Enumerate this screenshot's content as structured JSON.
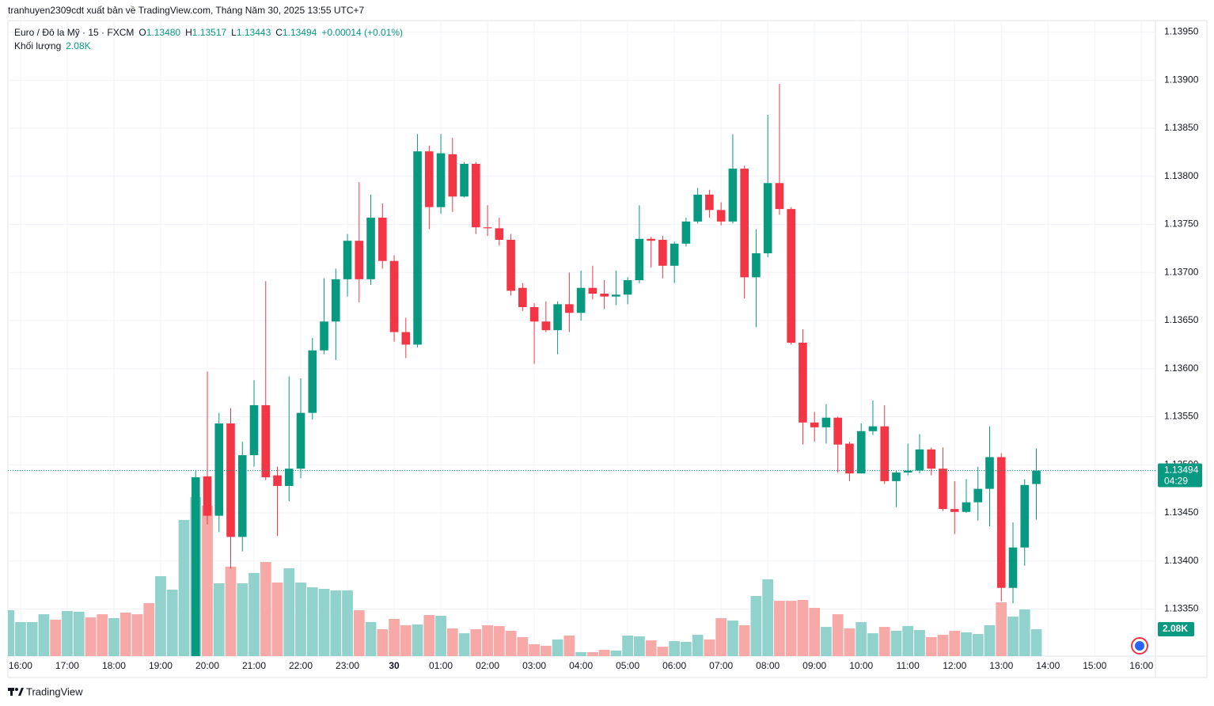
{
  "header": {
    "publisher": "tranhuyen2309cdt xuất bản về TradingView.com, Tháng Năm 30, 2025 13:55 UTC+7",
    "symbol": "Euro / Đô la Mỹ · 15 · FXCM",
    "o_label": "O",
    "o": "1.13480",
    "h_label": "H",
    "h": "1.13517",
    "l_label": "L",
    "l": "1.13443",
    "c_label": "C",
    "c": "1.13494",
    "change": "+0.00014 (+0.01%)",
    "volume_label": "Khối lượng",
    "volume": "2.08K"
  },
  "footer": "TradingView",
  "chart_data": {
    "type": "candlestick",
    "up_color": "#089981",
    "down_color": "#f23645",
    "xlim": [
      -0.08,
      98.2
    ],
    "xticks": [
      {
        "value": 1,
        "label": "16:00"
      },
      {
        "value": 5,
        "label": "17:00"
      },
      {
        "value": 9,
        "label": "18:00"
      },
      {
        "value": 13,
        "label": "19:00"
      },
      {
        "value": 17,
        "label": "20:00"
      },
      {
        "value": 21,
        "label": "21:00"
      },
      {
        "value": 25,
        "label": "22:00"
      },
      {
        "value": 29,
        "label": "23:00"
      },
      {
        "value": 33,
        "label": "30"
      },
      {
        "value": 37,
        "label": "01:00"
      },
      {
        "value": 41,
        "label": "02:00"
      },
      {
        "value": 45,
        "label": "03:00"
      },
      {
        "value": 49,
        "label": "04:00"
      },
      {
        "value": 53,
        "label": "05:00"
      },
      {
        "value": 57,
        "label": "06:00"
      },
      {
        "value": 61,
        "label": "07:00"
      },
      {
        "value": 65,
        "label": "08:00"
      },
      {
        "value": 69,
        "label": "09:00"
      },
      {
        "value": 73,
        "label": "10:00"
      },
      {
        "value": 77,
        "label": "11:00"
      },
      {
        "value": 81,
        "label": "12:00"
      },
      {
        "value": 85,
        "label": "13:00"
      },
      {
        "value": 89,
        "label": "14:00"
      },
      {
        "value": 93,
        "label": "15:00"
      },
      {
        "value": 97,
        "label": "16:00"
      }
    ],
    "ylim": [
      1.13301,
      1.13962
    ],
    "yticks": [
      {
        "value": 1.1335,
        "label": "1.13350"
      },
      {
        "value": 1.134,
        "label": "1.13400"
      },
      {
        "value": 1.1345,
        "label": "1.13450"
      },
      {
        "value": 1.135,
        "label": "1.13500"
      },
      {
        "value": 1.1355,
        "label": "1.13550"
      },
      {
        "value": 1.136,
        "label": "1.13600"
      },
      {
        "value": 1.1365,
        "label": "1.13650"
      },
      {
        "value": 1.137,
        "label": "1.13700"
      },
      {
        "value": 1.1375,
        "label": "1.13750"
      },
      {
        "value": 1.138,
        "label": "1.13800"
      },
      {
        "value": 1.1385,
        "label": "1.13850"
      },
      {
        "value": 1.139,
        "label": "1.13900"
      },
      {
        "value": 1.1395,
        "label": "1.13950"
      }
    ],
    "grid": true,
    "open": [
      null,
      null,
      null,
      null,
      null,
      null,
      null,
      null,
      null,
      null,
      null,
      null,
      null,
      null,
      null,
      null,
      1.133,
      1.13488,
      1.13447,
      1.13543,
      1.13425,
      1.1351,
      1.13562,
      1.13489,
      1.13478,
      1.13496,
      1.13554,
      1.13619,
      1.13649,
      1.13693,
      1.13733,
      1.13693,
      1.13757,
      1.13712,
      1.13638,
      1.13625,
      1.13826,
      1.13768,
      1.13823,
      1.13779,
      1.13813,
      1.13747,
      1.13746,
      1.13734,
      1.13684,
      1.13664,
      1.13649,
      1.1364,
      1.13667,
      1.13658,
      1.13684,
      1.13678,
      1.13675,
      1.13677,
      1.13692,
      1.13735,
      1.13734,
      1.13707,
      1.1373,
      1.13753,
      1.13781,
      1.13765,
      1.13753,
      1.13808,
      1.13695,
      1.1372,
      1.13793,
      1.13766,
      1.13627,
      1.13544,
      1.13539,
      1.13549,
      1.13522,
      1.13491,
      1.13535,
      1.1354,
      1.13483,
      1.13492,
      1.13494,
      1.13516,
      1.13496,
      1.13454,
      1.13451,
      1.13461,
      1.13475,
      1.13508,
      1.13372,
      1.13414,
      1.1348
    ],
    "high": [
      null,
      null,
      null,
      null,
      null,
      null,
      null,
      null,
      null,
      null,
      null,
      null,
      null,
      null,
      null,
      null,
      1.13494,
      1.13597,
      1.13554,
      1.13559,
      1.13524,
      1.13588,
      1.13691,
      1.13498,
      1.13592,
      1.1359,
      1.13632,
      1.13694,
      1.13704,
      1.1374,
      1.13794,
      1.13781,
      1.13772,
      1.13718,
      1.13653,
      1.13844,
      1.13832,
      1.13844,
      1.1384,
      1.13815,
      1.13815,
      1.1377,
      1.13757,
      1.1374,
      1.13689,
      1.13668,
      1.1367,
      1.1367,
      1.137,
      1.13702,
      1.13707,
      1.13692,
      1.13702,
      1.13695,
      1.1377,
      1.13737,
      1.13738,
      1.13732,
      1.13757,
      1.13788,
      1.13786,
      1.13773,
      1.13844,
      1.13811,
      1.13745,
      1.13864,
      1.13896,
      1.13768,
      1.13641,
      1.13555,
      1.13563,
      1.1355,
      1.13524,
      1.13543,
      1.13567,
      1.13562,
      1.13494,
      1.13522,
      1.13532,
      1.13518,
      1.13518,
      1.13483,
      1.13485,
      1.13498,
      1.1354,
      1.13512,
      1.1344,
      1.13485,
      1.13517
    ],
    "low": [
      null,
      null,
      null,
      null,
      null,
      null,
      null,
      null,
      null,
      null,
      null,
      null,
      null,
      null,
      null,
      null,
      1.1329,
      1.13438,
      1.1343,
      1.13392,
      1.1341,
      1.13498,
      1.13484,
      1.13426,
      1.13462,
      1.13486,
      1.13547,
      1.13615,
      1.13609,
      1.13675,
      1.13669,
      1.13687,
      1.13704,
      1.13628,
      1.13611,
      1.13622,
      1.13745,
      1.13761,
      1.13763,
      1.13778,
      1.1374,
      1.13738,
      1.13728,
      1.13676,
      1.1366,
      1.13605,
      1.13638,
      1.13615,
      1.13638,
      1.1365,
      1.13672,
      1.13662,
      1.13666,
      1.13667,
      1.13689,
      1.13705,
      1.13694,
      1.13689,
      1.13727,
      1.13751,
      1.13757,
      1.13749,
      1.13751,
      1.13673,
      1.13643,
      1.13716,
      1.1376,
      1.13625,
      1.13521,
      1.13524,
      1.13522,
      1.13492,
      1.13483,
      1.13491,
      1.13531,
      1.1348,
      1.13456,
      1.13489,
      1.13491,
      1.13489,
      1.13452,
      1.13428,
      1.1345,
      1.13442,
      1.13436,
      1.13358,
      1.13356,
      1.13395,
      1.13443
    ],
    "close": [
      null,
      null,
      null,
      null,
      null,
      null,
      null,
      null,
      null,
      null,
      null,
      null,
      null,
      null,
      null,
      null,
      1.13487,
      1.13447,
      1.13543,
      1.13425,
      1.1351,
      1.13562,
      1.13487,
      1.13478,
      1.13496,
      1.13554,
      1.13619,
      1.13649,
      1.13693,
      1.13733,
      1.13693,
      1.13757,
      1.13712,
      1.13638,
      1.13625,
      1.13826,
      1.13768,
      1.13824,
      1.13779,
      1.13813,
      1.13747,
      1.13746,
      1.13734,
      1.13681,
      1.13664,
      1.13649,
      1.1364,
      1.13667,
      1.13658,
      1.13684,
      1.13678,
      1.13675,
      1.13677,
      1.13692,
      1.13735,
      1.13733,
      1.13707,
      1.1373,
      1.13753,
      1.13781,
      1.13765,
      1.13753,
      1.13808,
      1.13695,
      1.1372,
      1.13793,
      1.13766,
      1.13627,
      1.13544,
      1.13539,
      1.13549,
      1.13521,
      1.13491,
      1.13535,
      1.1354,
      1.13483,
      1.13492,
      1.13494,
      1.13516,
      1.13496,
      1.13454,
      1.13451,
      1.13461,
      1.13475,
      1.13508,
      1.13372,
      1.13414,
      1.13479,
      1.13494
    ],
    "volume": {
      "values": [
        3550,
        2630,
        2630,
        3240,
        2820,
        3490,
        3430,
        3000,
        3240,
        2940,
        3370,
        3240,
        4100,
        6180,
        5140,
        10530,
        12300,
        11630,
        5630,
        6920,
        5630,
        6430,
        7280,
        5690,
        6790,
        5690,
        5320,
        5200,
        5080,
        5080,
        3550,
        2630,
        2080,
        2880,
        2390,
        2450,
        3180,
        3120,
        2140,
        1770,
        2080,
        2390,
        2330,
        1960,
        1470,
        920,
        800,
        1290,
        1590,
        310,
        310,
        490,
        430,
        1590,
        1530,
        1220,
        730,
        1160,
        1100,
        1650,
        1290,
        2940,
        2750,
        2390,
        4650,
        5940,
        4280,
        4280,
        4350,
        3730,
        2260,
        3240,
        2140,
        2630,
        1770,
        2260,
        1960,
        2330,
        2020,
        1470,
        1650,
        1960,
        1840,
        1710,
        2390,
        4160,
        3060,
        3610,
        2080
      ],
      "colors": [
        "#92d2cc",
        "#92d2cc",
        "#92d2cc",
        "#92d2cc",
        "#f7a9a7",
        "#92d2cc",
        "#92d2cc",
        "#f7a9a7",
        "#f7a9a7",
        "#92d2cc",
        "#f7a9a7",
        "#f7a9a7",
        "#f7a9a7",
        "#92d2cc",
        "#92d2cc",
        "#92d2cc",
        "#92d2cc",
        "#f7a9a7",
        "#92d2cc",
        "#f7a9a7",
        "#92d2cc",
        "#92d2cc",
        "#f7a9a7",
        "#f7a9a7",
        "#92d2cc",
        "#92d2cc",
        "#92d2cc",
        "#92d2cc",
        "#92d2cc",
        "#92d2cc",
        "#f7a9a7",
        "#92d2cc",
        "#f7a9a7",
        "#f7a9a7",
        "#f7a9a7",
        "#92d2cc",
        "#f7a9a7",
        "#92d2cc",
        "#f7a9a7",
        "#92d2cc",
        "#f7a9a7",
        "#f7a9a7",
        "#f7a9a7",
        "#f7a9a7",
        "#f7a9a7",
        "#f7a9a7",
        "#f7a9a7",
        "#92d2cc",
        "#f7a9a7",
        "#92d2cc",
        "#f7a9a7",
        "#f7a9a7",
        "#92d2cc",
        "#92d2cc",
        "#92d2cc",
        "#f7a9a7",
        "#f7a9a7",
        "#92d2cc",
        "#92d2cc",
        "#92d2cc",
        "#f7a9a7",
        "#f7a9a7",
        "#92d2cc",
        "#f7a9a7",
        "#92d2cc",
        "#92d2cc",
        "#f7a9a7",
        "#f7a9a7",
        "#f7a9a7",
        "#f7a9a7",
        "#92d2cc",
        "#f7a9a7",
        "#f7a9a7",
        "#92d2cc",
        "#92d2cc",
        "#f7a9a7",
        "#92d2cc",
        "#92d2cc",
        "#92d2cc",
        "#f7a9a7",
        "#f7a9a7",
        "#f7a9a7",
        "#92d2cc",
        "#92d2cc",
        "#92d2cc",
        "#f7a9a7",
        "#92d2cc",
        "#92d2cc",
        "#92d2cc"
      ]
    },
    "price_label": "1.13494",
    "countdown": "04:29",
    "volume_axis_label": "2.08K"
  }
}
